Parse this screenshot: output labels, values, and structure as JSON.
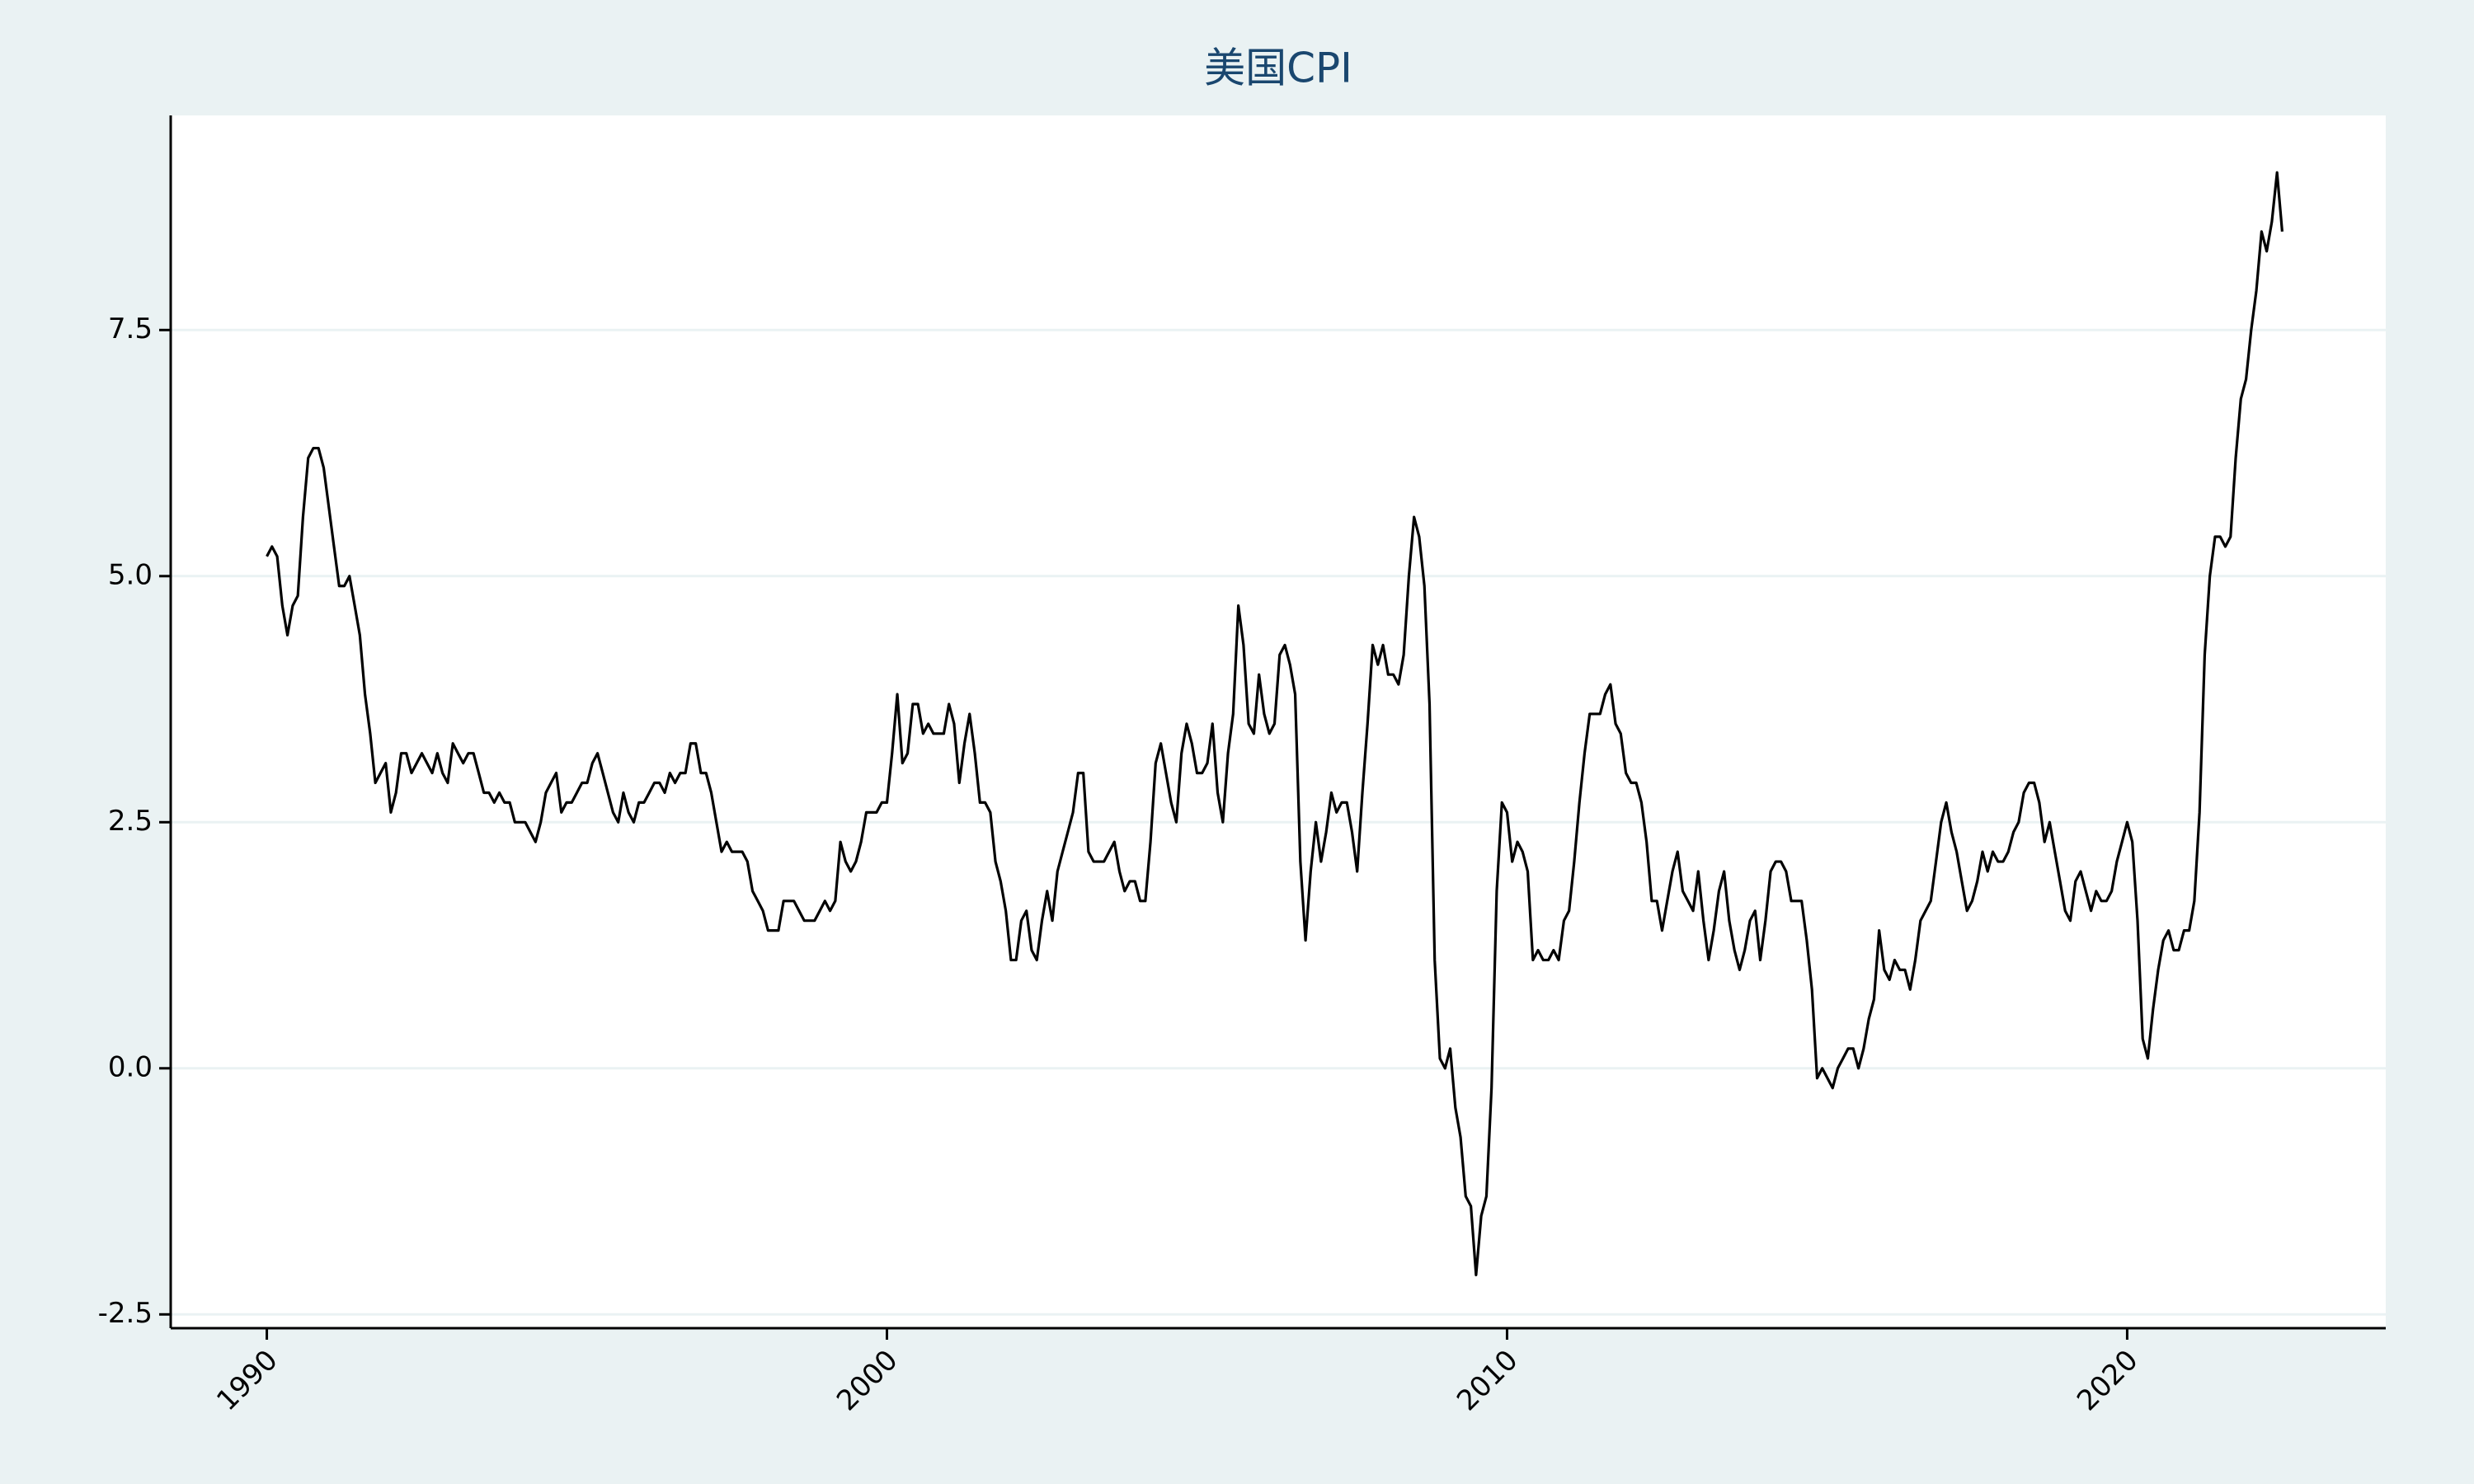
{
  "chart_data": {
    "type": "line",
    "title": "美国CPI",
    "color": "#000000",
    "grid": true,
    "xlim": [
      1988.45,
      2024.17
    ],
    "xticks": [
      1990,
      2000,
      2010,
      2020
    ],
    "ylim": [
      -2.64,
      9.68
    ],
    "yticks": [
      -2.5,
      {
        "value": 0,
        "label": "0.0"
      },
      2.5,
      {
        "value": 5,
        "label": "5.0"
      },
      7.5
    ],
    "x": [
      1990,
      1990.083,
      1990.167,
      1990.25,
      1990.333,
      1990.417,
      1990.5,
      1990.583,
      1990.667,
      1990.75,
      1990.833,
      1990.917,
      1991,
      1991.083,
      1991.167,
      1991.25,
      1991.333,
      1991.417,
      1991.5,
      1991.583,
      1991.667,
      1991.75,
      1991.833,
      1991.917,
      1992,
      1992.083,
      1992.167,
      1992.25,
      1992.333,
      1992.417,
      1992.5,
      1992.583,
      1992.667,
      1992.75,
      1992.833,
      1992.917,
      1993,
      1993.083,
      1993.167,
      1993.25,
      1993.333,
      1993.417,
      1993.5,
      1993.583,
      1993.667,
      1993.75,
      1993.833,
      1993.917,
      1994,
      1994.083,
      1994.167,
      1994.25,
      1994.333,
      1994.417,
      1994.5,
      1994.583,
      1994.667,
      1994.75,
      1994.833,
      1994.917,
      1995,
      1995.083,
      1995.167,
      1995.25,
      1995.333,
      1995.417,
      1995.5,
      1995.583,
      1995.667,
      1995.75,
      1995.833,
      1995.917,
      1996,
      1996.083,
      1996.167,
      1996.25,
      1996.333,
      1996.417,
      1996.5,
      1996.583,
      1996.667,
      1996.75,
      1996.833,
      1996.917,
      1997,
      1997.083,
      1997.167,
      1997.25,
      1997.333,
      1997.417,
      1997.5,
      1997.583,
      1997.667,
      1997.75,
      1997.833,
      1997.917,
      1998,
      1998.083,
      1998.167,
      1998.25,
      1998.333,
      1998.417,
      1998.5,
      1998.583,
      1998.667,
      1998.75,
      1998.833,
      1998.917,
      1999,
      1999.083,
      1999.167,
      1999.25,
      1999.333,
      1999.417,
      1999.5,
      1999.583,
      1999.667,
      1999.75,
      1999.833,
      1999.917,
      2000,
      2000.083,
      2000.167,
      2000.25,
      2000.333,
      2000.417,
      2000.5,
      2000.583,
      2000.667,
      2000.75,
      2000.833,
      2000.917,
      2001,
      2001.083,
      2001.167,
      2001.25,
      2001.333,
      2001.417,
      2001.5,
      2001.583,
      2001.667,
      2001.75,
      2001.833,
      2001.917,
      2002,
      2002.083,
      2002.167,
      2002.25,
      2002.333,
      2002.417,
      2002.5,
      2002.583,
      2002.667,
      2002.75,
      2002.833,
      2002.917,
      2003,
      2003.083,
      2003.167,
      2003.25,
      2003.333,
      2003.417,
      2003.5,
      2003.583,
      2003.667,
      2003.75,
      2003.833,
      2003.917,
      2004,
      2004.083,
      2004.167,
      2004.25,
      2004.333,
      2004.417,
      2004.5,
      2004.583,
      2004.667,
      2004.75,
      2004.833,
      2004.917,
      2005,
      2005.083,
      2005.167,
      2005.25,
      2005.333,
      2005.417,
      2005.5,
      2005.583,
      2005.667,
      2005.75,
      2005.833,
      2005.917,
      2006,
      2006.083,
      2006.167,
      2006.25,
      2006.333,
      2006.417,
      2006.5,
      2006.583,
      2006.667,
      2006.75,
      2006.833,
      2006.917,
      2007,
      2007.083,
      2007.167,
      2007.25,
      2007.333,
      2007.417,
      2007.5,
      2007.583,
      2007.667,
      2007.75,
      2007.833,
      2007.917,
      2008,
      2008.083,
      2008.167,
      2008.25,
      2008.333,
      2008.417,
      2008.5,
      2008.583,
      2008.667,
      2008.75,
      2008.833,
      2008.917,
      2009,
      2009.083,
      2009.167,
      2009.25,
      2009.333,
      2009.417,
      2009.5,
      2009.583,
      2009.667,
      2009.75,
      2009.833,
      2009.917,
      2010,
      2010.083,
      2010.167,
      2010.25,
      2010.333,
      2010.417,
      2010.5,
      2010.583,
      2010.667,
      2010.75,
      2010.833,
      2010.917,
      2011,
      2011.083,
      2011.167,
      2011.25,
      2011.333,
      2011.417,
      2011.5,
      2011.583,
      2011.667,
      2011.75,
      2011.833,
      2011.917,
      2012,
      2012.083,
      2012.167,
      2012.25,
      2012.333,
      2012.417,
      2012.5,
      2012.583,
      2012.667,
      2012.75,
      2012.833,
      2012.917,
      2013,
      2013.083,
      2013.167,
      2013.25,
      2013.333,
      2013.417,
      2013.5,
      2013.583,
      2013.667,
      2013.75,
      2013.833,
      2013.917,
      2014,
      2014.083,
      2014.167,
      2014.25,
      2014.333,
      2014.417,
      2014.5,
      2014.583,
      2014.667,
      2014.75,
      2014.833,
      2014.917,
      2015,
      2015.083,
      2015.167,
      2015.25,
      2015.333,
      2015.417,
      2015.5,
      2015.583,
      2015.667,
      2015.75,
      2015.833,
      2015.917,
      2016,
      2016.083,
      2016.167,
      2016.25,
      2016.333,
      2016.417,
      2016.5,
      2016.583,
      2016.667,
      2016.75,
      2016.833,
      2016.917,
      2017,
      2017.083,
      2017.167,
      2017.25,
      2017.333,
      2017.417,
      2017.5,
      2017.583,
      2017.667,
      2017.75,
      2017.833,
      2017.917,
      2018,
      2018.083,
      2018.167,
      2018.25,
      2018.333,
      2018.417,
      2018.5,
      2018.583,
      2018.667,
      2018.75,
      2018.833,
      2018.917,
      2019,
      2019.083,
      2019.167,
      2019.25,
      2019.333,
      2019.417,
      2019.5,
      2019.583,
      2019.667,
      2019.75,
      2019.833,
      2019.917,
      2020,
      2020.083,
      2020.167,
      2020.25,
      2020.333,
      2020.417,
      2020.5,
      2020.583,
      2020.667,
      2020.75,
      2020.833,
      2020.917,
      2021,
      2021.083,
      2021.167,
      2021.25,
      2021.333,
      2021.417,
      2021.5,
      2021.583,
      2021.667,
      2021.75,
      2021.833,
      2021.917,
      2022,
      2022.083,
      2022.167,
      2022.25,
      2022.333,
      2022.417,
      2022.5
    ],
    "values": [
      5.2,
      5.3,
      5.2,
      4.7,
      4.4,
      4.7,
      4.8,
      5.6,
      6.2,
      6.3,
      6.3,
      6.1,
      5.7,
      5.3,
      4.9,
      4.9,
      5.0,
      4.7,
      4.4,
      3.8,
      3.4,
      2.9,
      3.0,
      3.1,
      2.6,
      2.8,
      3.2,
      3.2,
      3.0,
      3.1,
      3.2,
      3.1,
      3.0,
      3.2,
      3.0,
      2.9,
      3.3,
      3.2,
      3.1,
      3.2,
      3.2,
      3.0,
      2.8,
      2.8,
      2.7,
      2.8,
      2.7,
      2.7,
      2.5,
      2.5,
      2.5,
      2.4,
      2.3,
      2.5,
      2.8,
      2.9,
      3.0,
      2.6,
      2.7,
      2.7,
      2.8,
      2.9,
      2.9,
      3.1,
      3.2,
      3.0,
      2.8,
      2.6,
      2.5,
      2.8,
      2.6,
      2.5,
      2.7,
      2.7,
      2.8,
      2.9,
      2.9,
      2.8,
      3.0,
      2.9,
      3.0,
      3.0,
      3.3,
      3.3,
      3.0,
      3.0,
      2.8,
      2.5,
      2.2,
      2.3,
      2.2,
      2.2,
      2.2,
      2.1,
      1.8,
      1.7,
      1.6,
      1.4,
      1.4,
      1.4,
      1.7,
      1.7,
      1.7,
      1.6,
      1.5,
      1.5,
      1.5,
      1.6,
      1.7,
      1.6,
      1.7,
      2.3,
      2.1,
      2.0,
      2.1,
      2.3,
      2.6,
      2.6,
      2.6,
      2.7,
      2.7,
      3.2,
      3.8,
      3.1,
      3.2,
      3.7,
      3.7,
      3.4,
      3.5,
      3.4,
      3.4,
      3.4,
      3.7,
      3.5,
      2.9,
      3.3,
      3.6,
      3.2,
      2.7,
      2.7,
      2.6,
      2.1,
      1.9,
      1.6,
      1.1,
      1.1,
      1.5,
      1.6,
      1.2,
      1.1,
      1.5,
      1.8,
      1.5,
      2.0,
      2.2,
      2.4,
      2.6,
      3.0,
      3.0,
      2.2,
      2.1,
      2.1,
      2.1,
      2.2,
      2.3,
      2.0,
      1.8,
      1.9,
      1.9,
      1.7,
      1.7,
      2.3,
      3.1,
      3.3,
      3.0,
      2.7,
      2.5,
      3.2,
      3.5,
      3.3,
      3.0,
      3.0,
      3.1,
      3.5,
      2.8,
      2.5,
      3.2,
      3.6,
      4.7,
      4.3,
      3.5,
      3.4,
      4.0,
      3.6,
      3.4,
      3.5,
      4.2,
      4.3,
      4.1,
      3.8,
      2.1,
      1.3,
      2.0,
      2.5,
      2.1,
      2.4,
      2.8,
      2.6,
      2.7,
      2.7,
      2.4,
      2.0,
      2.8,
      3.5,
      4.3,
      4.1,
      4.3,
      4.0,
      4.0,
      3.9,
      4.2,
      5.0,
      5.6,
      5.4,
      4.9,
      3.7,
      1.1,
      0.1,
      0.0,
      0.2,
      -0.4,
      -0.7,
      -1.3,
      -1.4,
      -2.1,
      -1.5,
      -1.3,
      -0.2,
      1.8,
      2.7,
      2.6,
      2.1,
      2.3,
      2.2,
      2.0,
      1.1,
      1.2,
      1.1,
      1.1,
      1.2,
      1.1,
      1.5,
      1.6,
      2.1,
      2.7,
      3.2,
      3.6,
      3.6,
      3.6,
      3.8,
      3.9,
      3.5,
      3.4,
      3.0,
      2.9,
      2.9,
      2.7,
      2.3,
      1.7,
      1.7,
      1.4,
      1.7,
      2.0,
      2.2,
      1.8,
      1.7,
      1.6,
      2.0,
      1.5,
      1.1,
      1.4,
      1.8,
      2.0,
      1.5,
      1.2,
      1.0,
      1.2,
      1.5,
      1.6,
      1.1,
      1.5,
      2.0,
      2.1,
      2.1,
      2.0,
      1.7,
      1.7,
      1.7,
      1.3,
      0.8,
      -0.1,
      0.0,
      -0.1,
      -0.2,
      0.0,
      0.1,
      0.2,
      0.2,
      0.0,
      0.2,
      0.5,
      0.7,
      1.4,
      1.0,
      0.9,
      1.1,
      1.0,
      1.0,
      0.8,
      1.1,
      1.5,
      1.6,
      1.7,
      2.1,
      2.5,
      2.7,
      2.4,
      2.2,
      1.9,
      1.6,
      1.7,
      1.9,
      2.2,
      2.0,
      2.2,
      2.1,
      2.1,
      2.2,
      2.4,
      2.5,
      2.8,
      2.9,
      2.9,
      2.7,
      2.3,
      2.5,
      2.2,
      1.9,
      1.6,
      1.5,
      1.9,
      2.0,
      1.8,
      1.6,
      1.8,
      1.7,
      1.7,
      1.8,
      2.1,
      2.3,
      2.5,
      2.3,
      1.5,
      0.3,
      0.1,
      0.6,
      1.0,
      1.3,
      1.4,
      1.2,
      1.2,
      1.4,
      1.4,
      1.7,
      2.6,
      4.2,
      5.0,
      5.4,
      5.4,
      5.3,
      5.4,
      6.2,
      6.8,
      7.0,
      7.5,
      7.9,
      8.5,
      8.3,
      8.6,
      9.1,
      8.5
    ]
  }
}
